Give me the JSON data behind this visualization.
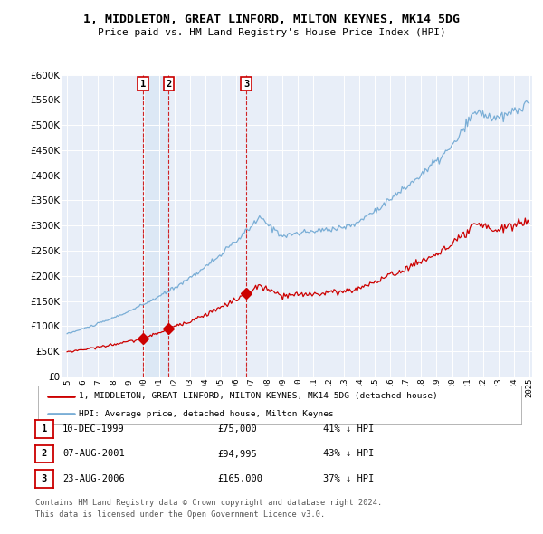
{
  "title": "1, MIDDLETON, GREAT LINFORD, MILTON KEYNES, MK14 5DG",
  "subtitle": "Price paid vs. HM Land Registry's House Price Index (HPI)",
  "plot_bg_color": "#e8eef8",
  "hpi_color": "#7aaed6",
  "price_color": "#cc0000",
  "sale_marker_color": "#cc0000",
  "vline_color": "#cc0000",
  "ylim": [
    0,
    600000
  ],
  "yticks": [
    0,
    50000,
    100000,
    150000,
    200000,
    250000,
    300000,
    350000,
    400000,
    450000,
    500000,
    550000,
    600000
  ],
  "sales": [
    {
      "label": "1",
      "date_num": 1999.94,
      "price": 75000,
      "date_str": "10-DEC-1999",
      "hpi_pct": "41% ↓ HPI"
    },
    {
      "label": "2",
      "date_num": 2001.59,
      "price": 94995,
      "date_str": "07-AUG-2001",
      "hpi_pct": "43% ↓ HPI"
    },
    {
      "label": "3",
      "date_num": 2006.64,
      "price": 165000,
      "date_str": "23-AUG-2006",
      "hpi_pct": "37% ↓ HPI"
    }
  ],
  "legend_line1": "1, MIDDLETON, GREAT LINFORD, MILTON KEYNES, MK14 5DG (detached house)",
  "legend_line2": "HPI: Average price, detached house, Milton Keynes",
  "footnote1": "Contains HM Land Registry data © Crown copyright and database right 2024.",
  "footnote2": "This data is licensed under the Open Government Licence v3.0.",
  "shade_color": "#dce8f5",
  "xstart": 1995.0,
  "xend": 2025.2
}
